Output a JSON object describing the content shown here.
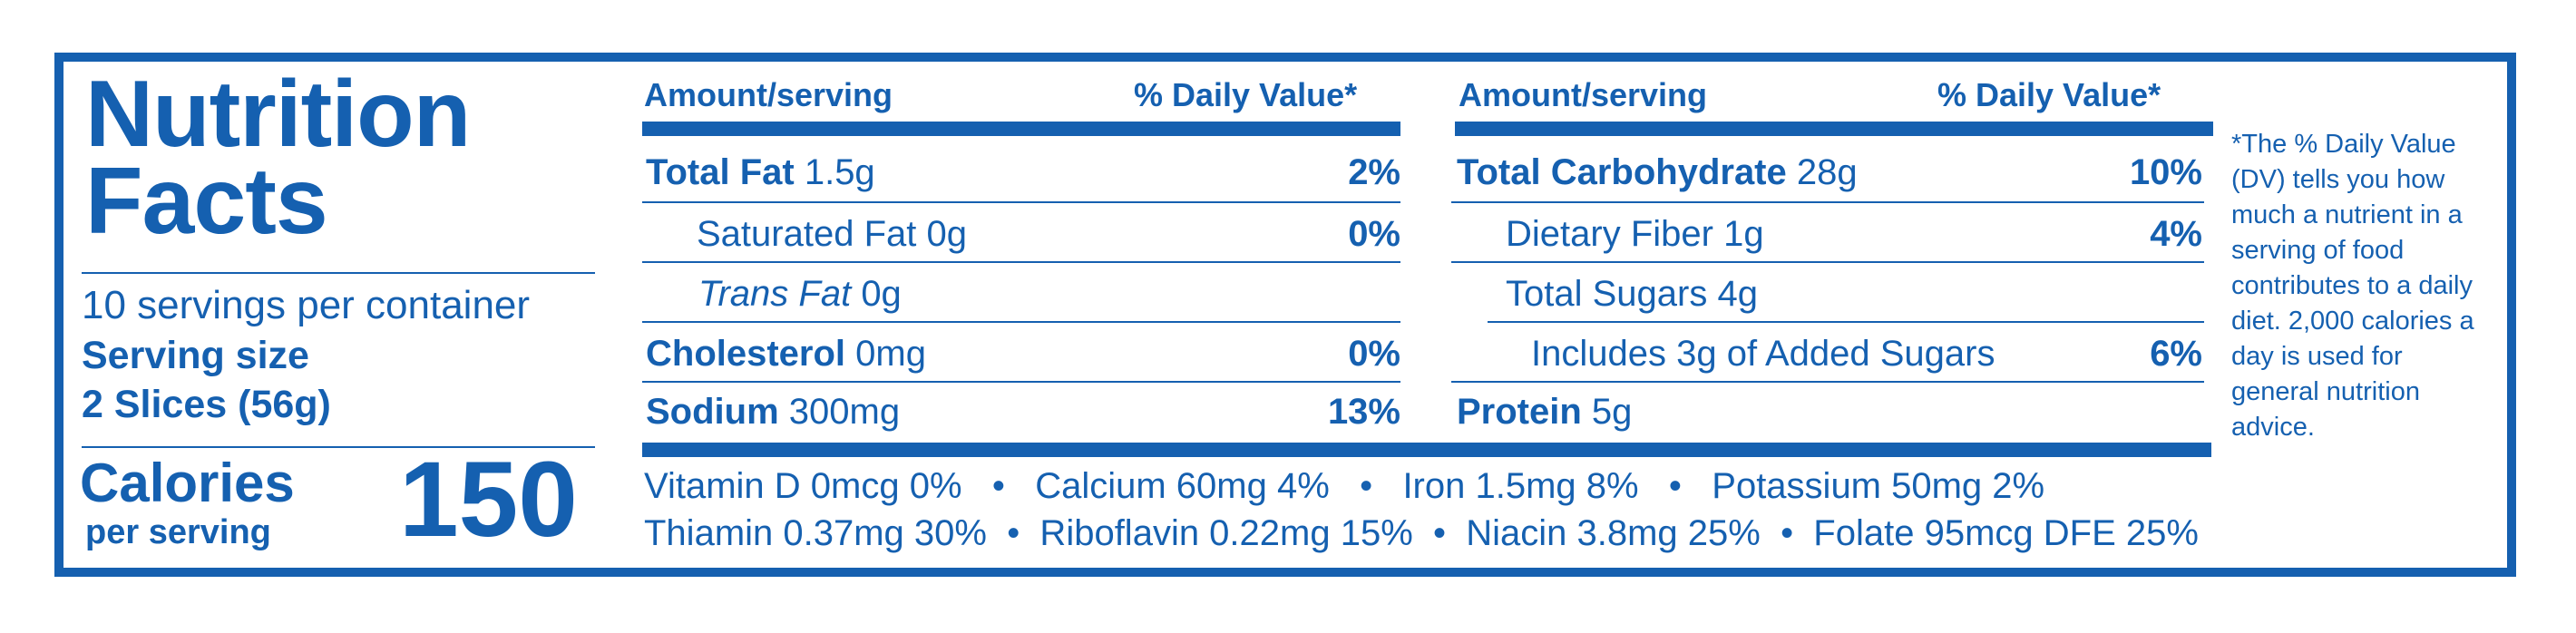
{
  "label": {
    "title_line1": "Nutrition",
    "title_line2": "Facts",
    "servings_per_container": "10 servings per container",
    "serving_size_label": "Serving size",
    "serving_size_value": "2 Slices (56g)",
    "calories_label": "Calories",
    "calories_sub": "per serving",
    "calories_value": "150"
  },
  "left_table": {
    "header_amount": "Amount/serving",
    "header_dv": "% Daily Value*",
    "rows": [
      {
        "name": "Total Fat",
        "amount": "1.5g",
        "dv": "2%"
      },
      {
        "name": "Saturated Fat",
        "amount": "0g",
        "dv": "0%"
      },
      {
        "name": "Trans Fat",
        "amount": "0g",
        "dv": ""
      },
      {
        "name": "Cholesterol",
        "amount": "0mg",
        "dv": "0%"
      },
      {
        "name": "Sodium",
        "amount": "300mg",
        "dv": "13%"
      }
    ]
  },
  "right_table": {
    "header_amount": "Amount/serving",
    "header_dv": "% Daily Value*",
    "rows": [
      {
        "name": "Total Carbohydrate",
        "amount": "28g",
        "dv": "10%"
      },
      {
        "name": "Dietary Fiber",
        "amount": "1g",
        "dv": "4%"
      },
      {
        "name": "Total Sugars",
        "amount": "4g",
        "dv": ""
      },
      {
        "name": "Includes 3g of Added Sugars",
        "amount": "",
        "dv": "6%"
      },
      {
        "name": "Protein",
        "amount": "5g",
        "dv": ""
      }
    ]
  },
  "vitamins_line1": "Vitamin D 0mcg 0%   •   Calcium 60mg 4%   •   Iron 1.5mg 8%   •   Potassium 50mg 2%",
  "vitamins_line2": "Thiamin 0.37mg 30%  •  Riboflavin 0.22mg 15%  •  Niacin 3.8mg 25%  •  Folate 95mcg DFE 25%",
  "footnote": "*The % Daily Value (DV) tells you how much a nutrient in a serving of food contributes to a daily diet. 2,000 calories a day is used for general nutrition advice.",
  "colors": {
    "label_blue": "#1560b0",
    "background": "#ffffff"
  }
}
